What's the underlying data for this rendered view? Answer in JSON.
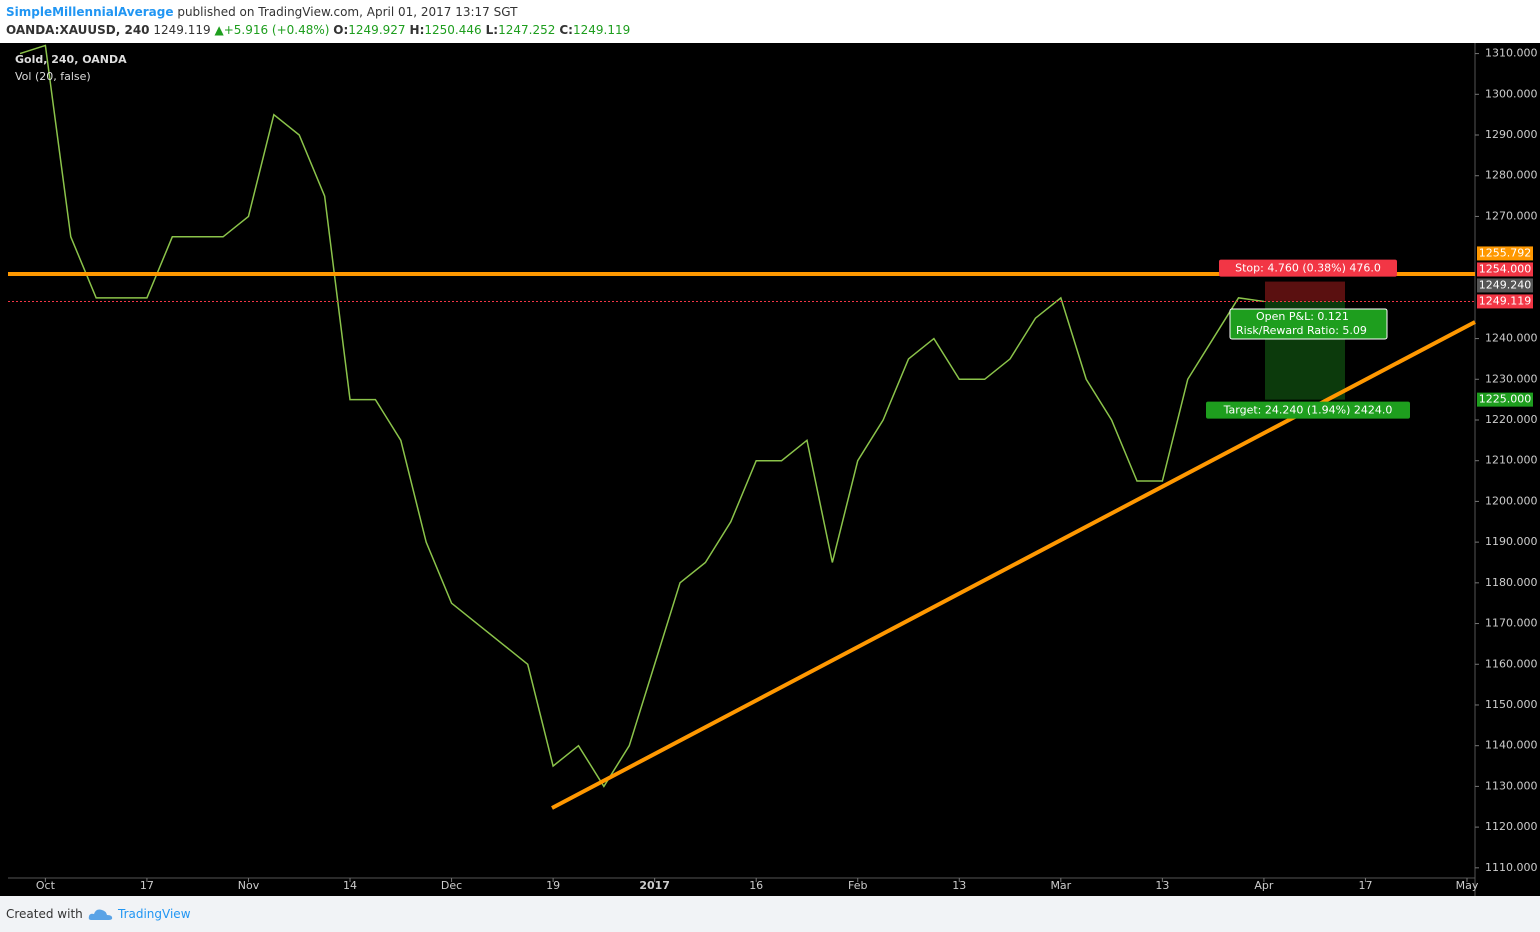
{
  "header": {
    "author": "SimpleMillennialAverage",
    "published": "published on TradingView.com, April 01, 2017 13:17 SGT",
    "symbol": "OANDA:XAUUSD, 240",
    "last": 1249.119,
    "arrow": "▲",
    "change": "+5.916 (+0.48%)",
    "ohlc": [
      {
        "label": "O:",
        "value": 1249.927
      },
      {
        "label": "H:",
        "value": 1250.446
      },
      {
        "label": "L:",
        "value": 1247.252
      },
      {
        "label": "C:",
        "value": 1249.119
      }
    ]
  },
  "chart_data": {
    "type": "line",
    "legend": [
      "Gold, 240, OANDA",
      "Vol (20, false)"
    ],
    "categories": [
      null,
      "Oct",
      null,
      null,
      null,
      "17",
      null,
      null,
      null,
      "Nov",
      null,
      null,
      null,
      "14",
      null,
      null,
      null,
      "Dec",
      null,
      null,
      null,
      "19",
      null,
      null,
      null,
      "2017",
      null,
      null,
      null,
      "16",
      null,
      null,
      null,
      "Feb",
      null,
      null,
      null,
      "13",
      null,
      null,
      null,
      "Mar",
      null,
      null,
      null,
      "13",
      null,
      null,
      null,
      "Apr",
      null,
      null,
      null,
      "17",
      null,
      null,
      null,
      "May"
    ],
    "series": [
      {
        "name": "XAUUSD",
        "color": "#8bc34a",
        "values": [
          1310,
          1312,
          1265,
          1250,
          1250,
          1250,
          1265,
          1265,
          1265,
          1270,
          1295,
          1290,
          1275,
          1225,
          1225,
          1215,
          1190,
          1175,
          1170,
          1165,
          1160,
          1135,
          1140,
          1130,
          1140,
          1160,
          1180,
          1185,
          1195,
          1210,
          1210,
          1215,
          1185,
          1210,
          1220,
          1235,
          1240,
          1230,
          1230,
          1235,
          1245,
          1250,
          1230,
          1220,
          1205,
          1205,
          1230,
          1240,
          1250,
          1249.119,
          null,
          null,
          null,
          null,
          null,
          null,
          null,
          null
        ]
      }
    ],
    "ylim": [
      1107.5,
      1312.6
    ],
    "yticks": [
      {
        "value": 1110,
        "label": "1110.000"
      },
      {
        "value": 1120,
        "label": "1120.000"
      },
      {
        "value": 1130,
        "label": "1130.000"
      },
      {
        "value": 1140,
        "label": "1140.000"
      },
      {
        "value": 1150,
        "label": "1150.000"
      },
      {
        "value": 1160,
        "label": "1160.000"
      },
      {
        "value": 1170,
        "label": "1170.000"
      },
      {
        "value": 1180,
        "label": "1180.000"
      },
      {
        "value": 1190,
        "label": "1190.000"
      },
      {
        "value": 1200,
        "label": "1200.000"
      },
      {
        "value": 1210,
        "label": "1210.000"
      },
      {
        "value": 1220,
        "label": "1220.000"
      },
      {
        "value": 1230,
        "label": "1230.000"
      },
      {
        "value": 1240,
        "label": "1240.000"
      },
      {
        "value": 1270,
        "label": "1270.000"
      },
      {
        "value": 1280,
        "label": "1280.000"
      },
      {
        "value": 1290,
        "label": "1290.000"
      },
      {
        "value": 1300,
        "label": "1300.000"
      },
      {
        "value": 1310,
        "label": "1310.000"
      }
    ],
    "price_tags": [
      {
        "value": 1255.792,
        "label": "1255.792",
        "color": "#ff9800"
      },
      {
        "value": 1254,
        "label": "1254.000",
        "color": "#f23645"
      },
      {
        "value": 1249.24,
        "label": "1249.240",
        "color": "#555555"
      },
      {
        "value": 1249.119,
        "label": "1249.119",
        "color": "#f23645"
      },
      {
        "value": 1225,
        "label": "1225.000",
        "color": "#1e9e1e"
      }
    ],
    "position": {
      "stop": "Stop: 4.760 (0.38%) 476.0",
      "pnl": "Open P&L: 0.121",
      "rr": "Risk/Reward Ratio: 5.09",
      "target": "Target: 24.240 (1.94%) 2424.0"
    }
  },
  "footer": {
    "created": "Created with",
    "brand": "TradingView"
  }
}
